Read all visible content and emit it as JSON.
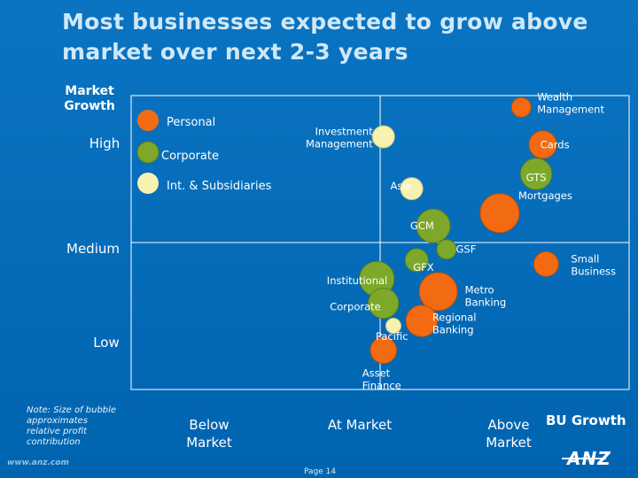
{
  "title": "Most businesses expected to grow above market over next 2-3 years",
  "y_axis": {
    "label": "Market Growth",
    "high": "High",
    "medium": "Medium",
    "low": "Low"
  },
  "x_axis": {
    "label": "BU Growth",
    "below": "Below Market",
    "at": "At Market",
    "above": "Above Market"
  },
  "note": {
    "label": "Note:",
    "text": "Size of bubble approximates relative profit contribution"
  },
  "footer": {
    "url": "www.anz.com",
    "page": "Page 14",
    "logo": "ANZ"
  },
  "colors": {
    "Personal": "#f26b12",
    "Corporate": "#7ea82a",
    "Int. & Subsidiaries": "#f7f2b0"
  },
  "chart_data": {
    "type": "bubble",
    "title": "Most businesses expected to grow above market over next 2-3 years",
    "xlabel": "BU Growth",
    "ylabel": "Market Growth",
    "x_scale": {
      "ticks": [
        "Below Market",
        "At Market",
        "Above Market"
      ],
      "range": [
        0,
        3
      ]
    },
    "y_scale": {
      "ticks": [
        "Low",
        "Medium",
        "High"
      ],
      "range": [
        0,
        3
      ]
    },
    "legend": [
      {
        "name": "Personal",
        "color": "#f26b12"
      },
      {
        "name": "Corporate",
        "color": "#7ea82a"
      },
      {
        "name": "Int. & Subsidiaries",
        "color": "#f7f2b0"
      }
    ],
    "size_meaning": "Size of bubble approximates relative profit contribution",
    "series": [
      {
        "name": "Wealth Management",
        "group": "Personal",
        "x": 2.35,
        "y": 2.88,
        "size": 1.0
      },
      {
        "name": "Investment Management",
        "group": "Int. & Subsidiaries",
        "x": 1.52,
        "y": 2.58,
        "size": 1.3
      },
      {
        "name": "Cards",
        "group": "Personal",
        "x": 2.48,
        "y": 2.5,
        "size": 2.0
      },
      {
        "name": "GTS",
        "group": "Corporate",
        "x": 2.44,
        "y": 2.2,
        "size": 2.6
      },
      {
        "name": "Asia",
        "group": "Int. & Subsidiaries",
        "x": 1.69,
        "y": 2.05,
        "size": 1.3
      },
      {
        "name": "Mortgages",
        "group": "Personal",
        "x": 2.22,
        "y": 1.8,
        "size": 4.0
      },
      {
        "name": "GCM",
        "group": "Corporate",
        "x": 1.82,
        "y": 1.67,
        "size": 3.0
      },
      {
        "name": "GSF",
        "group": "Corporate",
        "x": 1.9,
        "y": 1.43,
        "size": 1.0
      },
      {
        "name": "GFX",
        "group": "Corporate",
        "x": 1.72,
        "y": 1.32,
        "size": 1.4
      },
      {
        "name": "Institutional",
        "group": "Corporate",
        "x": 1.48,
        "y": 1.13,
        "size": 3.2
      },
      {
        "name": "Metro Banking",
        "group": "Personal",
        "x": 1.85,
        "y": 1.0,
        "size": 3.8
      },
      {
        "name": "Small Business",
        "group": "Personal",
        "x": 2.5,
        "y": 1.28,
        "size": 1.6
      },
      {
        "name": "Corporate",
        "group": "Corporate",
        "x": 1.52,
        "y": 0.88,
        "size": 2.4
      },
      {
        "name": "Regional Banking",
        "group": "Personal",
        "x": 1.75,
        "y": 0.7,
        "size": 2.6
      },
      {
        "name": "Pacific",
        "group": "Int. & Subsidiaries",
        "x": 1.58,
        "y": 0.65,
        "size": 0.6
      },
      {
        "name": "Asset Finance",
        "group": "Personal",
        "x": 1.52,
        "y": 0.4,
        "size": 1.8
      }
    ]
  }
}
